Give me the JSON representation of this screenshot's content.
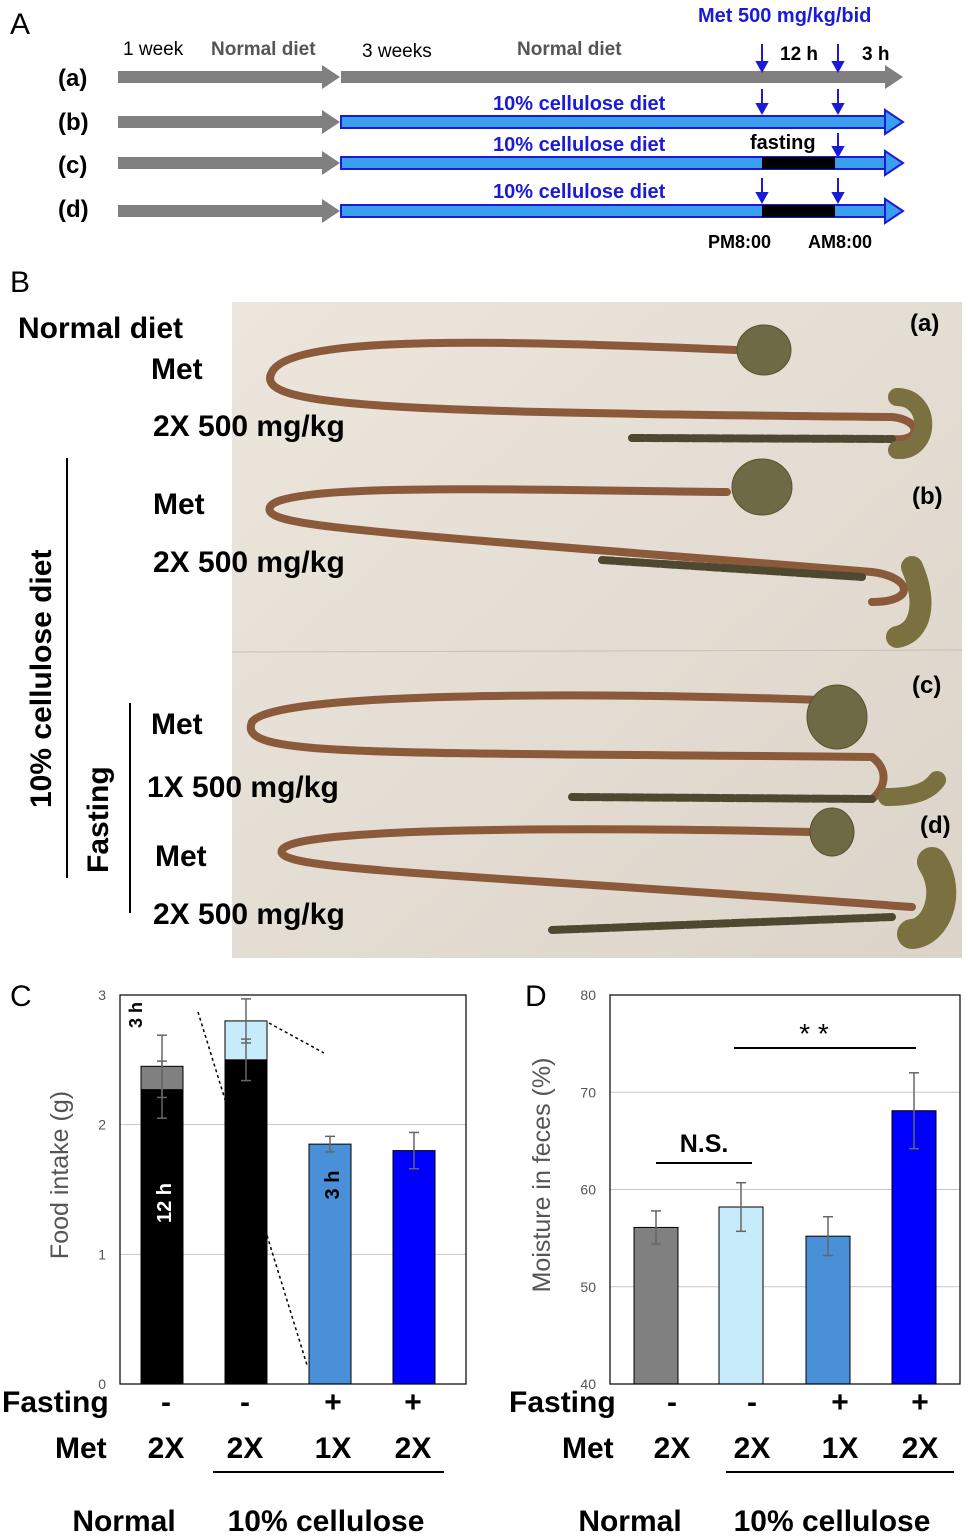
{
  "panelA": {
    "letter": "A",
    "rows": [
      "(a)",
      "(b)",
      "(c)",
      "(d)"
    ],
    "period1": "1 week",
    "period1_diet": "Normal diet",
    "period2": "3 weeks",
    "period2_diet": "Normal diet",
    "cellulose_diet": "10% cellulose diet",
    "met_dose": "Met 500 mg/kg/bid",
    "interval1": "12 h",
    "interval2": "3 h",
    "fasting": "fasting",
    "time1": "PM8:00",
    "time2": "AM8:00",
    "colors": {
      "gray": "#808080",
      "blue_fill": "#2e9bf0",
      "blue_text": "#1a1ad8",
      "black": "#000000"
    }
  },
  "panelB": {
    "letter": "B",
    "normal_diet": "Normal diet",
    "cellulose_diet": "10% cellulose diet",
    "fasting": "Fasting",
    "groups": [
      {
        "id": "(a)",
        "met": "Met",
        "dose": "2X 500 mg/kg"
      },
      {
        "id": "(b)",
        "met": "Met",
        "dose": "2X 500 mg/kg"
      },
      {
        "id": "(c)",
        "met": "Met",
        "dose": "1X 500 mg/kg"
      },
      {
        "id": "(d)",
        "met": "Met",
        "dose": "2X 500 mg/kg"
      }
    ]
  },
  "chart_data": [
    {
      "panel": "C",
      "type": "bar",
      "stacked": true,
      "ylabel": "Food intake (g)",
      "ylim": [
        0,
        3
      ],
      "yticks": [
        0,
        1,
        2,
        3
      ],
      "grid": true,
      "categories": [
        "Normal 2X",
        "Cellulose 2X",
        "Cellulose fasting 1X",
        "Cellulose fasting 2X"
      ],
      "series": [
        {
          "name": "12 h",
          "values": [
            2.27,
            2.5,
            null,
            null
          ],
          "errors": [
            0.22,
            0.16,
            null,
            null
          ]
        },
        {
          "name": "3 h",
          "values": [
            0.18,
            0.3,
            1.85,
            1.8
          ],
          "errors": [
            0.24,
            0.17,
            0.06,
            0.14
          ]
        }
      ],
      "segment_colors": [
        [
          "#000000",
          "#808080"
        ],
        [
          "#000000",
          "#c6ebfb"
        ],
        [
          null,
          "#4a90d9"
        ],
        [
          null,
          "#0000ff"
        ]
      ],
      "bar_labels": {
        "label_3h_top": "3 h",
        "label_12h": "12 h",
        "label_3h": "3 h"
      },
      "fasting": [
        "-",
        "-",
        "+",
        "+"
      ],
      "met": [
        "2X",
        "2X",
        "1X",
        "2X"
      ],
      "group_normal": "Normal",
      "group_cellulose": "10% cellulose",
      "row_fasting": "Fasting",
      "row_met": "Met"
    },
    {
      "panel": "D",
      "type": "bar",
      "ylabel": "Moisture in feces (%)",
      "ylim": [
        40,
        80
      ],
      "yticks": [
        40,
        50,
        60,
        70,
        80
      ],
      "grid": true,
      "categories": [
        "Normal 2X",
        "Cellulose 2X",
        "Cellulose fasting 1X",
        "Cellulose fasting 2X"
      ],
      "values": [
        56.1,
        58.2,
        55.2,
        68.1
      ],
      "errors": [
        1.7,
        2.5,
        2.0,
        3.9
      ],
      "colors": [
        "#808080",
        "#c6ebfb",
        "#4a90d9",
        "#0000ff"
      ],
      "annotations": {
        "ns": "N.S.",
        "sig": "* *"
      },
      "fasting": [
        "-",
        "-",
        "+",
        "+"
      ],
      "met": [
        "2X",
        "2X",
        "1X",
        "2X"
      ],
      "group_normal": "Normal",
      "group_cellulose": "10% cellulose",
      "row_fasting": "Fasting",
      "row_met": "Met"
    }
  ]
}
